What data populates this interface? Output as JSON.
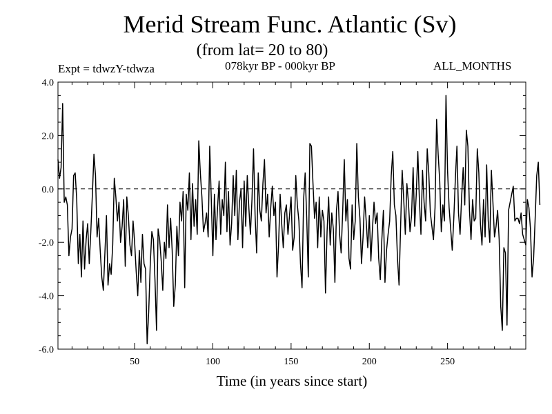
{
  "header": {
    "expt_label": "Expt = tdwzY-tdwza",
    "period_label": "078kyr BP - 000kyr BP",
    "months_label": "ALL_MONTHS"
  },
  "chart_data": {
    "type": "line",
    "title": "Merid Stream Func. Atlantic (Sv)",
    "subtitle": "(from lat= 20 to 80)",
    "xlabel": "Time (in years since start)",
    "ylabel": "",
    "xlim": [
      1,
      300
    ],
    "ylim": [
      -6.0,
      4.0
    ],
    "x_ticks": [
      50,
      100,
      150,
      200,
      250
    ],
    "y_ticks": [
      "-6.0",
      "-4.0",
      "-2.0",
      "0.0",
      "2.0",
      "4.0"
    ],
    "zero_line": "dashed",
    "grid": false,
    "line_color": "#000000",
    "series": [
      {
        "x_start": 1,
        "x_step": 1,
        "values": [
          1.1,
          0.4,
          0.8,
          3.2,
          -0.5,
          -0.3,
          -0.6,
          -2.5,
          -1.8,
          -1.5,
          0.5,
          0.6,
          -0.4,
          -2.8,
          -1.7,
          -3.3,
          -1.2,
          -3.0,
          -1.9,
          -1.3,
          -2.8,
          -1.6,
          -0.2,
          1.3,
          0.5,
          -1.8,
          -1.1,
          -2.3,
          -3.3,
          -3.8,
          -2.4,
          -1.0,
          -3.6,
          -2.8,
          -3.2,
          -2.1,
          0.4,
          -0.3,
          -1.2,
          -0.5,
          -2.0,
          -1.4,
          -0.4,
          -2.9,
          -0.3,
          -1.0,
          -2.1,
          -2.5,
          -1.2,
          -2.0,
          -3.1,
          -4.0,
          -2.3,
          -3.5,
          -1.7,
          -2.8,
          -3.0,
          -5.8,
          -4.6,
          -2.8,
          -1.6,
          -1.9,
          -3.4,
          -5.3,
          -1.5,
          -1.9,
          -2.7,
          -3.8,
          -2.0,
          -2.6,
          -0.6,
          -2.2,
          -1.1,
          -2.3,
          -4.4,
          -3.6,
          -1.4,
          -2.5,
          -0.5,
          -1.2,
          -0.1,
          -3.7,
          -0.2,
          -0.8,
          0.6,
          -1.9,
          0.2,
          -1.4,
          -0.4,
          -1.7,
          1.8,
          0.6,
          -0.3,
          -1.6,
          -1.3,
          -0.9,
          -1.8,
          1.6,
          -0.4,
          -2.5,
          -0.2,
          -1.9,
          -0.7,
          0.3,
          -1.7,
          -0.4,
          -1.0,
          1.0,
          -1.6,
          -0.1,
          -2.1,
          -1.3,
          0.5,
          -1.0,
          0.7,
          -1.9,
          -0.5,
          0.0,
          -2.2,
          0.3,
          -1.4,
          0.5,
          -0.7,
          -1.7,
          -0.4,
          1.5,
          -1.0,
          -2.4,
          0.6,
          -0.8,
          -1.2,
          0.2,
          1.1,
          -0.9,
          -0.2,
          -1.8,
          -0.7,
          0.1,
          -1.0,
          -0.5,
          -3.3,
          -2.1,
          -0.2,
          -1.3,
          -2.2,
          -0.9,
          -0.6,
          -1.7,
          -1.0,
          -0.3,
          -2.3,
          -1.8,
          0.5,
          -0.6,
          -1.2,
          -2.8,
          -3.7,
          -0.4,
          0.6,
          -1.1,
          -3.3,
          1.7,
          1.6,
          0.2,
          -1.1,
          -0.5,
          -2.2,
          -0.3,
          -1.8,
          -0.8,
          -1.2,
          -3.9,
          -1.6,
          -0.3,
          -2.1,
          -0.9,
          -1.5,
          -3.5,
          -0.8,
          -0.1,
          -1.7,
          -2.4,
          -0.8,
          1.1,
          -1.2,
          -0.4,
          -2.6,
          -3.0,
          -0.6,
          -1.9,
          -1.2,
          1.7,
          -0.3,
          -1.1,
          -2.8,
          -1.8,
          -0.3,
          -1.2,
          -2.2,
          -1.0,
          -2.7,
          -1.5,
          -0.5,
          -1.3,
          -0.9,
          -2.6,
          -3.4,
          -1.9,
          -0.8,
          -3.5,
          -2.3,
          -1.7,
          -1.2,
          0.5,
          1.4,
          -0.6,
          -1.0,
          -2.6,
          -3.6,
          -1.4,
          0.7,
          -0.4,
          -1.7,
          0.2,
          -0.5,
          -1.6,
          -1.0,
          0.8,
          -1.4,
          -0.2,
          1.4,
          -0.4,
          -1.7,
          0.7,
          -0.5,
          -1.2,
          1.5,
          0.6,
          -0.9,
          -1.4,
          -1.9,
          -0.7,
          2.6,
          1.3,
          0.3,
          -1.6,
          -0.6,
          -1.2,
          3.5,
          0.7,
          -0.7,
          -1.5,
          -2.3,
          -1.1,
          0.4,
          1.6,
          -0.9,
          -1.7,
          -0.3,
          0.8,
          -0.6,
          2.2,
          1.6,
          -0.8,
          -1.9,
          -0.4,
          -1.2,
          -1.1,
          1.5,
          0.6,
          -1.3,
          -2.1,
          -0.4,
          -1.8,
          0.9,
          -1.2,
          -2.0,
          0.7,
          -0.5,
          -1.8,
          -1.4,
          -0.8,
          -1.9,
          -4.4,
          -5.3,
          -2.2,
          -2.4,
          -5.1,
          -0.8,
          -0.5,
          -0.2,
          0.1,
          -1.2,
          -1.1,
          -1.1,
          -1.3,
          -0.9,
          -1.7,
          -1.9,
          -2.1,
          -0.4,
          -0.7,
          -1.5,
          -3.3,
          -2.6,
          -1.1,
          0.5,
          1.0,
          -0.6
        ]
      }
    ]
  }
}
